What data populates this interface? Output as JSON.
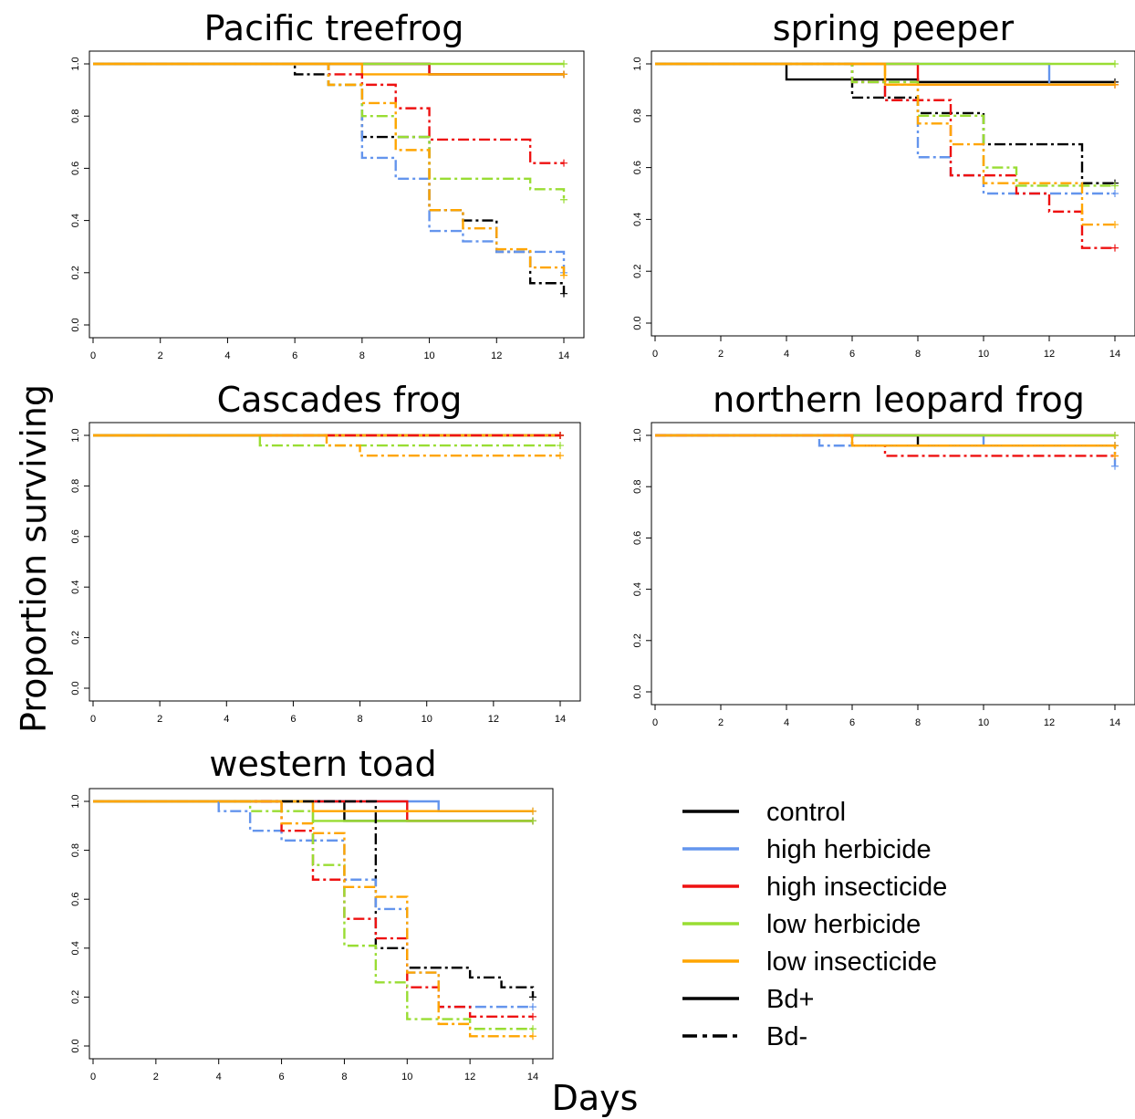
{
  "ylabel": "Proportion surviving",
  "xlabel": "Days",
  "legend": {
    "placement": "bottom-right",
    "items": [
      {
        "label": "control",
        "color": "#000000",
        "style": "solid"
      },
      {
        "label": "high herbicide",
        "color": "#6495ED",
        "style": "solid"
      },
      {
        "label": "high insecticide",
        "color": "#EE1111",
        "style": "solid"
      },
      {
        "label": "low herbicide",
        "color": "#99DD33",
        "style": "solid"
      },
      {
        "label": "low insecticide",
        "color": "#FFA500",
        "style": "solid"
      },
      {
        "label": "Bd+",
        "color": "#000000",
        "style": "solid"
      },
      {
        "label": "Bd-",
        "color": "#000000",
        "style": "dashed"
      }
    ]
  },
  "chart_data": [
    {
      "type": "line",
      "title": "Pacific treefrog",
      "xlim": [
        0,
        14
      ],
      "ylim": [
        0,
        1
      ],
      "xticks": [
        "0",
        "2",
        "4",
        "6",
        "8",
        "10",
        "12",
        "14"
      ],
      "yticks": [
        "0.0",
        "0.2",
        "0.4",
        "0.6",
        "0.8",
        "1.0"
      ],
      "series": [
        {
          "treatment": "control",
          "bd": "Bd+",
          "color": "#000000",
          "x": [
            0,
            10,
            14
          ],
          "y": [
            1.0,
            0.96,
            0.96
          ]
        },
        {
          "treatment": "high herbicide",
          "bd": "Bd+",
          "color": "#6495ED",
          "x": [
            0,
            10,
            14
          ],
          "y": [
            1.0,
            0.96,
            0.96
          ]
        },
        {
          "treatment": "high insecticide",
          "bd": "Bd+",
          "color": "#EE1111",
          "x": [
            0,
            10,
            14
          ],
          "y": [
            1.0,
            0.96,
            0.96
          ]
        },
        {
          "treatment": "low herbicide",
          "bd": "Bd+",
          "color": "#99DD33",
          "x": [
            0,
            14
          ],
          "y": [
            1.0,
            1.0
          ]
        },
        {
          "treatment": "low insecticide",
          "bd": "Bd+",
          "color": "#FFA500",
          "x": [
            0,
            8,
            14
          ],
          "y": [
            1.0,
            0.96,
            0.96
          ]
        },
        {
          "treatment": "control",
          "bd": "Bd-",
          "color": "#000000",
          "x": [
            0,
            6,
            7,
            8,
            10,
            11,
            12,
            13,
            14
          ],
          "y": [
            1.0,
            0.96,
            0.92,
            0.72,
            0.44,
            0.4,
            0.28,
            0.16,
            0.12
          ]
        },
        {
          "treatment": "high herbicide",
          "bd": "Bd-",
          "color": "#6495ED",
          "x": [
            0,
            7,
            8,
            9,
            10,
            11,
            12,
            14
          ],
          "y": [
            1.0,
            0.92,
            0.64,
            0.56,
            0.36,
            0.32,
            0.28,
            0.2
          ]
        },
        {
          "treatment": "high insecticide",
          "bd": "Bd-",
          "color": "#EE1111",
          "x": [
            0,
            7,
            8,
            9,
            10,
            13,
            14
          ],
          "y": [
            1.0,
            0.96,
            0.92,
            0.83,
            0.71,
            0.62,
            0.62
          ]
        },
        {
          "treatment": "low herbicide",
          "bd": "Bd-",
          "color": "#99DD33",
          "x": [
            0,
            7,
            8,
            9,
            10,
            13,
            14
          ],
          "y": [
            1.0,
            0.92,
            0.8,
            0.72,
            0.56,
            0.52,
            0.48
          ]
        },
        {
          "treatment": "low insecticide",
          "bd": "Bd-",
          "color": "#FFA500",
          "x": [
            0,
            7,
            8,
            9,
            10,
            11,
            12,
            13,
            14
          ],
          "y": [
            1.0,
            0.92,
            0.85,
            0.67,
            0.44,
            0.37,
            0.29,
            0.22,
            0.19
          ]
        }
      ]
    },
    {
      "type": "line",
      "title": "spring peeper",
      "xlim": [
        0,
        14
      ],
      "ylim": [
        0,
        1
      ],
      "xticks": [
        "0",
        "2",
        "4",
        "6",
        "8",
        "10",
        "12",
        "14"
      ],
      "yticks": [
        "0.0",
        "0.2",
        "0.4",
        "0.6",
        "0.8",
        "1.0"
      ],
      "series": [
        {
          "treatment": "control",
          "bd": "Bd+",
          "color": "#000000",
          "x": [
            0,
            4,
            8,
            14
          ],
          "y": [
            1.0,
            0.94,
            0.93,
            0.93
          ]
        },
        {
          "treatment": "high herbicide",
          "bd": "Bd+",
          "color": "#6495ED",
          "x": [
            0,
            12,
            14
          ],
          "y": [
            1.0,
            0.92,
            0.92
          ]
        },
        {
          "treatment": "high insecticide",
          "bd": "Bd+",
          "color": "#EE1111",
          "x": [
            0,
            8,
            14
          ],
          "y": [
            1.0,
            0.92,
            0.92
          ]
        },
        {
          "treatment": "low herbicide",
          "bd": "Bd+",
          "color": "#99DD33",
          "x": [
            0,
            14
          ],
          "y": [
            1.0,
            1.0
          ]
        },
        {
          "treatment": "low insecticide",
          "bd": "Bd+",
          "color": "#FFA500",
          "x": [
            0,
            7,
            14
          ],
          "y": [
            1.0,
            0.92,
            0.92
          ]
        },
        {
          "treatment": "control",
          "bd": "Bd-",
          "color": "#000000",
          "x": [
            0,
            6,
            8,
            10,
            13,
            14
          ],
          "y": [
            1.0,
            0.87,
            0.81,
            0.69,
            0.54,
            0.54
          ]
        },
        {
          "treatment": "high herbicide",
          "bd": "Bd-",
          "color": "#6495ED",
          "x": [
            0,
            6,
            7,
            8,
            9,
            10,
            14
          ],
          "y": [
            1.0,
            0.93,
            0.86,
            0.64,
            0.57,
            0.5,
            0.5
          ]
        },
        {
          "treatment": "high insecticide",
          "bd": "Bd-",
          "color": "#EE1111",
          "x": [
            0,
            6,
            7,
            8,
            9,
            11,
            12,
            13,
            14
          ],
          "y": [
            1.0,
            0.93,
            0.86,
            0.86,
            0.57,
            0.5,
            0.43,
            0.29,
            0.29
          ]
        },
        {
          "treatment": "low herbicide",
          "bd": "Bd-",
          "color": "#99DD33",
          "x": [
            0,
            6,
            8,
            10,
            11,
            14
          ],
          "y": [
            1.0,
            0.93,
            0.8,
            0.6,
            0.53,
            0.53
          ]
        },
        {
          "treatment": "low insecticide",
          "bd": "Bd-",
          "color": "#FFA500",
          "x": [
            0,
            7,
            8,
            9,
            10,
            13,
            14
          ],
          "y": [
            1.0,
            0.92,
            0.77,
            0.69,
            0.54,
            0.38,
            0.38
          ]
        }
      ]
    },
    {
      "type": "line",
      "title": "Cascades frog",
      "xlim": [
        0,
        14
      ],
      "ylim": [
        0,
        1
      ],
      "xticks": [
        "0",
        "2",
        "4",
        "6",
        "8",
        "10",
        "12",
        "14"
      ],
      "yticks": [
        "0.0",
        "0.2",
        "0.4",
        "0.6",
        "0.8",
        "1.0"
      ],
      "series": [
        {
          "treatment": "control",
          "bd": "Bd+",
          "color": "#000000",
          "x": [
            0,
            14
          ],
          "y": [
            1.0,
            1.0
          ]
        },
        {
          "treatment": "high herbicide",
          "bd": "Bd+",
          "color": "#6495ED",
          "x": [
            0,
            14
          ],
          "y": [
            1.0,
            1.0
          ]
        },
        {
          "treatment": "high insecticide",
          "bd": "Bd+",
          "color": "#EE1111",
          "x": [
            0,
            14
          ],
          "y": [
            1.0,
            1.0
          ]
        },
        {
          "treatment": "low herbicide",
          "bd": "Bd+",
          "color": "#99DD33",
          "x": [
            0,
            14
          ],
          "y": [
            1.0,
            1.0
          ]
        },
        {
          "treatment": "low insecticide",
          "bd": "Bd+",
          "color": "#FFA500",
          "x": [
            0,
            14
          ],
          "y": [
            1.0,
            1.0
          ]
        },
        {
          "treatment": "high insecticide",
          "bd": "Bd-",
          "color": "#EE1111",
          "x": [
            0,
            7,
            14
          ],
          "y": [
            1.0,
            1.0,
            1.0
          ]
        },
        {
          "treatment": "low herbicide",
          "bd": "Bd-",
          "color": "#99DD33",
          "x": [
            0,
            5,
            14
          ],
          "y": [
            1.0,
            0.96,
            0.96
          ]
        },
        {
          "treatment": "low insecticide",
          "bd": "Bd-",
          "color": "#FFA500",
          "x": [
            0,
            7,
            8,
            14
          ],
          "y": [
            1.0,
            0.96,
            0.92,
            0.92
          ]
        }
      ]
    },
    {
      "type": "line",
      "title": "northern leopard frog",
      "xlim": [
        0,
        14
      ],
      "ylim": [
        0,
        1
      ],
      "xticks": [
        "0",
        "2",
        "4",
        "6",
        "8",
        "10",
        "12",
        "14"
      ],
      "yticks": [
        "0.0",
        "0.2",
        "0.4",
        "0.6",
        "0.8",
        "1.0"
      ],
      "series": [
        {
          "treatment": "control",
          "bd": "Bd+",
          "color": "#000000",
          "x": [
            0,
            8,
            14
          ],
          "y": [
            1.0,
            0.96,
            0.96
          ]
        },
        {
          "treatment": "high herbicide",
          "bd": "Bd+",
          "color": "#6495ED",
          "x": [
            0,
            10,
            14
          ],
          "y": [
            1.0,
            0.96,
            0.96
          ]
        },
        {
          "treatment": "high insecticide",
          "bd": "Bd+",
          "color": "#EE1111",
          "x": [
            0,
            14
          ],
          "y": [
            1.0,
            1.0
          ]
        },
        {
          "treatment": "low herbicide",
          "bd": "Bd+",
          "color": "#99DD33",
          "x": [
            0,
            14
          ],
          "y": [
            1.0,
            1.0
          ]
        },
        {
          "treatment": "low insecticide",
          "bd": "Bd+",
          "color": "#FFA500",
          "x": [
            0,
            6,
            14
          ],
          "y": [
            1.0,
            0.96,
            0.96
          ]
        },
        {
          "treatment": "high herbicide",
          "bd": "Bd-",
          "color": "#6495ED",
          "x": [
            0,
            5,
            14
          ],
          "y": [
            1.0,
            0.96,
            0.88
          ]
        },
        {
          "treatment": "high insecticide",
          "bd": "Bd-",
          "color": "#EE1111",
          "x": [
            0,
            6,
            7,
            14
          ],
          "y": [
            1.0,
            0.96,
            0.92,
            0.92
          ]
        },
        {
          "treatment": "low insecticide",
          "bd": "Bd-",
          "color": "#FFA500",
          "x": [
            0,
            6,
            14
          ],
          "y": [
            1.0,
            0.96,
            0.92
          ]
        }
      ]
    },
    {
      "type": "line",
      "title": "western toad",
      "xlim": [
        0,
        14
      ],
      "ylim": [
        0,
        1
      ],
      "xticks": [
        "0",
        "2",
        "4",
        "6",
        "8",
        "10",
        "12",
        "14"
      ],
      "yticks": [
        "0.0",
        "0.2",
        "0.4",
        "0.6",
        "0.8",
        "1.0"
      ],
      "series": [
        {
          "treatment": "control",
          "bd": "Bd+",
          "color": "#000000",
          "x": [
            0,
            8,
            14
          ],
          "y": [
            1.0,
            0.92,
            0.92
          ]
        },
        {
          "treatment": "high herbicide",
          "bd": "Bd+",
          "color": "#6495ED",
          "x": [
            0,
            11,
            14
          ],
          "y": [
            1.0,
            0.96,
            0.96
          ]
        },
        {
          "treatment": "high insecticide",
          "bd": "Bd+",
          "color": "#EE1111",
          "x": [
            0,
            10,
            14
          ],
          "y": [
            1.0,
            0.92,
            0.92
          ]
        },
        {
          "treatment": "low herbicide",
          "bd": "Bd+",
          "color": "#99DD33",
          "x": [
            0,
            7,
            14
          ],
          "y": [
            1.0,
            0.92,
            0.92
          ]
        },
        {
          "treatment": "low insecticide",
          "bd": "Bd+",
          "color": "#FFA500",
          "x": [
            0,
            7,
            14
          ],
          "y": [
            1.0,
            0.96,
            0.96
          ]
        },
        {
          "treatment": "control",
          "bd": "Bd-",
          "color": "#000000",
          "x": [
            0,
            9,
            10,
            12,
            13,
            14
          ],
          "y": [
            1.0,
            0.4,
            0.32,
            0.28,
            0.24,
            0.2
          ]
        },
        {
          "treatment": "high herbicide",
          "bd": "Bd-",
          "color": "#6495ED",
          "x": [
            0,
            4,
            5,
            6,
            8,
            9,
            10,
            11,
            14
          ],
          "y": [
            1.0,
            0.96,
            0.88,
            0.84,
            0.68,
            0.56,
            0.3,
            0.16,
            0.16
          ]
        },
        {
          "treatment": "high insecticide",
          "bd": "Bd-",
          "color": "#EE1111",
          "x": [
            0,
            6,
            7,
            8,
            9,
            10,
            11,
            12,
            14
          ],
          "y": [
            1.0,
            0.88,
            0.68,
            0.52,
            0.44,
            0.24,
            0.16,
            0.12,
            0.12
          ]
        },
        {
          "treatment": "low herbicide",
          "bd": "Bd-",
          "color": "#99DD33",
          "x": [
            0,
            5,
            7,
            8,
            9,
            10,
            12,
            14
          ],
          "y": [
            1.0,
            0.96,
            0.74,
            0.41,
            0.26,
            0.11,
            0.07,
            0.07
          ]
        },
        {
          "treatment": "low insecticide",
          "bd": "Bd-",
          "color": "#FFA500",
          "x": [
            0,
            6,
            7,
            8,
            9,
            10,
            11,
            12,
            14
          ],
          "y": [
            1.0,
            0.91,
            0.87,
            0.65,
            0.61,
            0.3,
            0.09,
            0.04,
            0.04
          ]
        }
      ]
    }
  ]
}
